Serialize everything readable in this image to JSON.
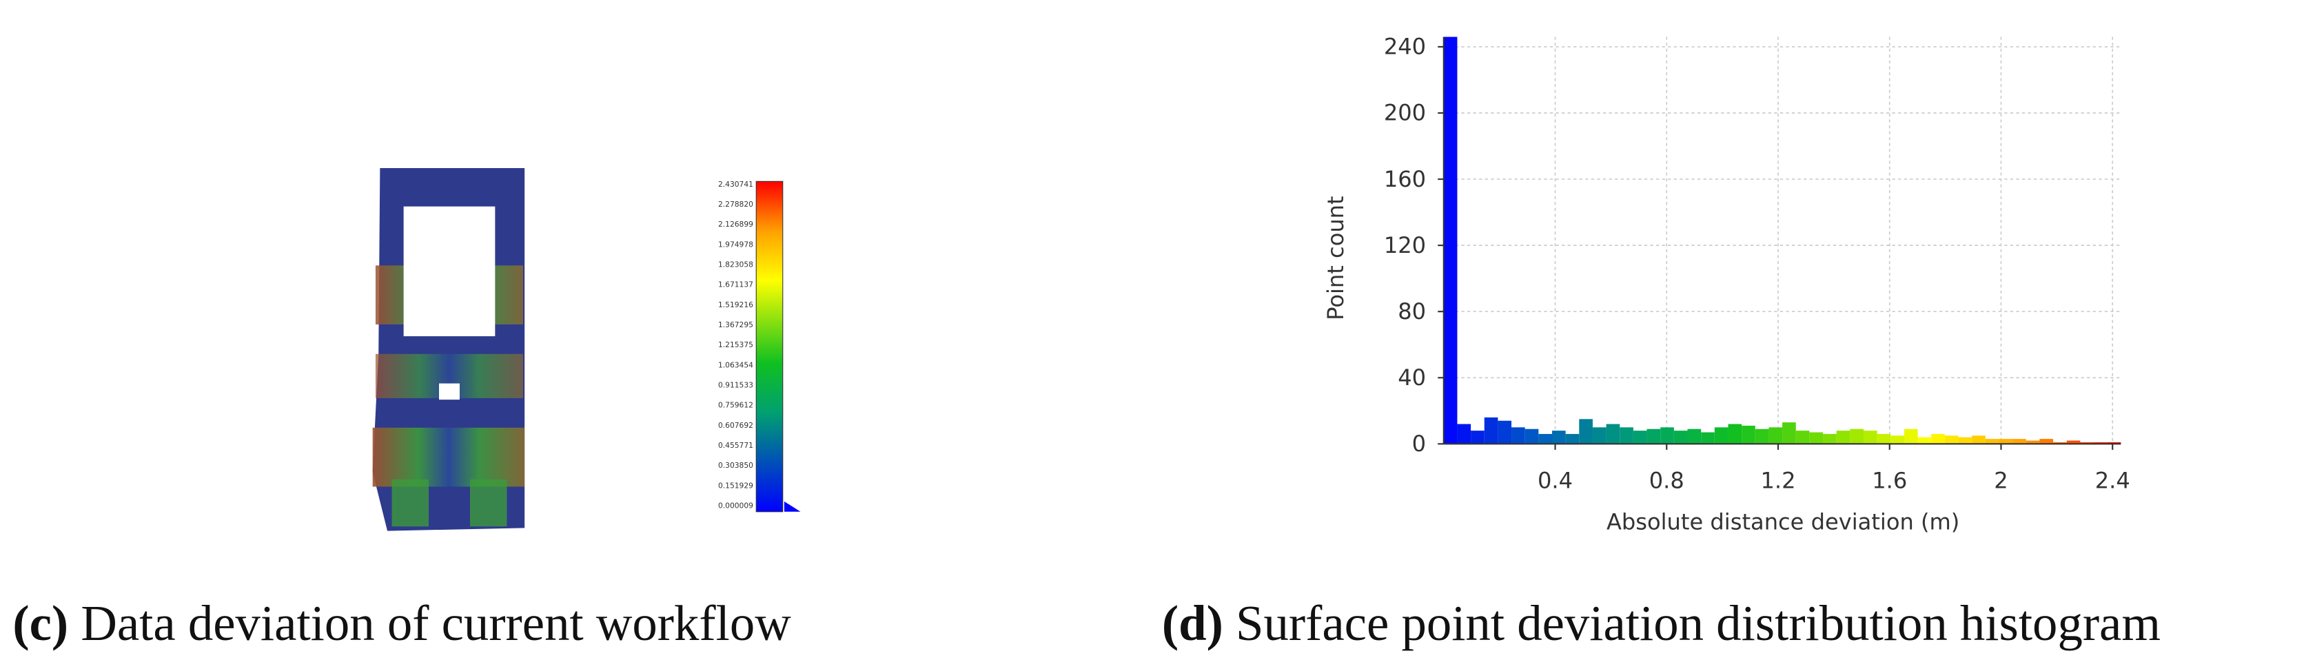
{
  "panel_c": {
    "caption_label": "(c)",
    "caption": "Data deviation of current workflow",
    "colorbar": {
      "lim": [
        9e-06,
        2.430741
      ],
      "ticks": [
        2.430741,
        {
          "value": 2.27882,
          "label": "2.278820"
        },
        2.126899,
        1.974978,
        1.823058,
        1.671137,
        1.519216,
        1.367295,
        1.215375,
        1.063454,
        0.911533,
        0.759612,
        0.607692,
        0.455771,
        {
          "value": 0.30385,
          "label": "0.303850"
        },
        0.151929,
        9e-06
      ]
    }
  },
  "chart_data": {
    "type": "histogram",
    "caption_label": "(d)",
    "caption": "Surface point deviation distribution histogram",
    "x_label": "Absolute distance deviation (m)",
    "y_label": "Point count",
    "bins": [
      0,
      0.0486,
      0.0972,
      0.1458,
      0.1944,
      0.243,
      0.2916,
      0.3402,
      0.3888,
      0.4374,
      0.486,
      0.5346,
      0.5832,
      0.6318,
      0.6804,
      0.729,
      0.7776,
      0.8262,
      0.8748,
      0.9234,
      0.972,
      1.0206,
      1.0692,
      1.1178,
      1.1664,
      1.215,
      1.2636,
      1.3122,
      1.3608,
      1.4094,
      1.458,
      1.5066,
      1.5552,
      1.6038,
      1.6524,
      1.701,
      1.7496,
      1.7982,
      1.8468,
      1.8954,
      1.944,
      1.9926,
      2.0412,
      2.0898,
      2.1384,
      2.187,
      2.2356,
      2.2842,
      2.3328,
      2.3814,
      2.43
    ],
    "values": [
      246,
      12,
      8,
      16,
      14,
      10,
      9,
      6,
      8,
      6,
      15,
      10,
      12,
      10,
      8,
      9,
      10,
      8,
      9,
      7,
      10,
      12,
      11,
      9,
      10,
      13,
      8,
      7,
      6,
      8,
      9,
      8,
      6,
      5,
      9,
      4,
      6,
      5,
      4,
      5,
      3,
      3,
      3,
      2,
      3,
      1,
      2,
      1,
      1,
      1
    ],
    "xlim": [
      0,
      2.43
    ],
    "xticks": [
      0.4,
      0.8,
      1.2,
      1.6,
      2,
      2.4
    ],
    "ylim": [
      0,
      246
    ],
    "yticks": [
      0,
      40,
      80,
      120,
      160,
      200,
      240
    ],
    "grid": true,
    "colormap": [
      "#0000ff",
      "#0060c0",
      "#00a070",
      "#10c020",
      "#80e000",
      "#ffff00",
      "#ffa000",
      "#ff0000"
    ]
  }
}
